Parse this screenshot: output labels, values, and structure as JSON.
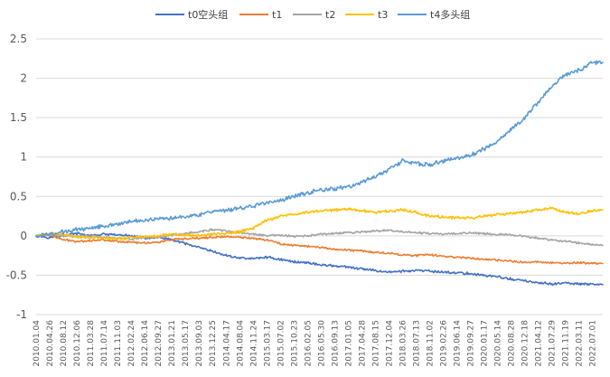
{
  "chart_data": {
    "type": "line",
    "title": "",
    "xlabel": "",
    "ylabel": "",
    "ylim": [
      -1,
      2.5
    ],
    "yticks": [
      -1,
      -0.5,
      0,
      0.5,
      1,
      1.5,
      2,
      2.5
    ],
    "ytick_labels": [
      "-1",
      "-0.5",
      "0",
      "0.5",
      "1",
      "1.5",
      "2",
      "2.5"
    ],
    "grid": true,
    "legend_position": "top",
    "x_tick_labels": [
      "2010.01.04",
      "2010.04.26",
      "2010.08.12",
      "2010.12.06",
      "2011.03.28",
      "2011.07.14",
      "2011.11.03",
      "2012.02.24",
      "2012.06.14",
      "2012.09.27",
      "2013.01.21",
      "2013.05.17",
      "2013.09.03",
      "2013.12.25",
      "2014.04.17",
      "2014.08.04",
      "2014.11.24",
      "2015.03.17",
      "2015.07.02",
      "2015.10.23",
      "2016.02.05",
      "2016.05.30",
      "2016.09.13",
      "2017.01.05",
      "2017.04.28",
      "2017.08.15",
      "2017.12.04",
      "2018.03.26",
      "2018.07.13",
      "2018.11.02",
      "2019.02.26",
      "2019.06.14",
      "2019.09.27",
      "2020.01.17",
      "2020.05.14",
      "2020.08.28",
      "2020.12.18",
      "2021.04.12",
      "2021.07.29",
      "2021.11.19",
      "2022.03.11",
      "2022.07.01"
    ],
    "x_index": [
      0,
      4,
      8,
      12,
      16,
      20,
      24,
      28,
      32,
      36,
      40,
      44,
      48,
      52,
      56,
      60,
      64,
      68,
      72,
      76,
      80,
      84,
      88,
      92,
      96,
      100,
      104,
      108,
      112,
      116,
      120,
      124,
      128,
      132,
      136,
      140,
      144,
      148,
      152,
      156,
      160,
      164,
      167
    ],
    "series": [
      {
        "name": "t0空头组",
        "color": "#4472C4",
        "values": [
          0,
          -0.02,
          0.01,
          0.03,
          0,
          0.02,
          0.01,
          0,
          -0.03,
          -0.02,
          -0.05,
          -0.1,
          -0.15,
          -0.2,
          -0.25,
          -0.28,
          -0.29,
          -0.27,
          -0.3,
          -0.33,
          -0.34,
          -0.37,
          -0.38,
          -0.4,
          -0.42,
          -0.44,
          -0.46,
          -0.45,
          -0.44,
          -0.45,
          -0.46,
          -0.47,
          -0.48,
          -0.5,
          -0.52,
          -0.55,
          -0.57,
          -0.6,
          -0.61,
          -0.6,
          -0.61,
          -0.62,
          -0.62
        ]
      },
      {
        "name": "t1",
        "color": "#ED7D31",
        "values": [
          0,
          0.01,
          -0.05,
          -0.07,
          -0.06,
          -0.05,
          -0.07,
          -0.08,
          -0.09,
          -0.08,
          -0.05,
          -0.04,
          -0.03,
          -0.02,
          -0.01,
          -0.02,
          -0.03,
          -0.05,
          -0.1,
          -0.12,
          -0.13,
          -0.15,
          -0.17,
          -0.18,
          -0.19,
          -0.21,
          -0.22,
          -0.24,
          -0.25,
          -0.24,
          -0.26,
          -0.27,
          -0.28,
          -0.3,
          -0.31,
          -0.32,
          -0.34,
          -0.33,
          -0.34,
          -0.35,
          -0.34,
          -0.35,
          -0.35
        ]
      },
      {
        "name": "t2",
        "color": "#A5A5A5",
        "values": [
          0,
          0.02,
          0,
          -0.01,
          0,
          -0.02,
          -0.03,
          -0.04,
          -0.03,
          -0.02,
          0.01,
          0.03,
          0.05,
          0.08,
          0.06,
          0.04,
          0.02,
          0,
          0.01,
          -0.01,
          0,
          0.02,
          0.03,
          0.04,
          0.05,
          0.06,
          0.07,
          0.05,
          0.04,
          0.03,
          0.02,
          0.03,
          0.04,
          0.03,
          0.02,
          0.01,
          -0.01,
          -0.03,
          -0.05,
          -0.07,
          -0.09,
          -0.11,
          -0.12
        ]
      },
      {
        "name": "t3",
        "color": "#FFC000",
        "values": [
          0,
          0.03,
          0.02,
          -0.01,
          -0.02,
          -0.03,
          -0.04,
          -0.02,
          -0.01,
          0,
          0.02,
          0.01,
          0,
          0.02,
          0.03,
          0.05,
          0.1,
          0.2,
          0.25,
          0.27,
          0.3,
          0.32,
          0.33,
          0.34,
          0.32,
          0.3,
          0.31,
          0.33,
          0.3,
          0.25,
          0.24,
          0.23,
          0.22,
          0.25,
          0.27,
          0.28,
          0.3,
          0.33,
          0.35,
          0.3,
          0.28,
          0.32,
          0.33
        ]
      },
      {
        "name": "t4多头组",
        "color": "#5B9BD5",
        "values": [
          0,
          0.02,
          0.05,
          0.08,
          0.1,
          0.13,
          0.15,
          0.18,
          0.2,
          0.22,
          0.23,
          0.25,
          0.27,
          0.3,
          0.32,
          0.35,
          0.38,
          0.42,
          0.45,
          0.5,
          0.55,
          0.58,
          0.6,
          0.62,
          0.68,
          0.75,
          0.85,
          0.95,
          0.92,
          0.9,
          0.95,
          0.98,
          1.02,
          1.1,
          1.2,
          1.35,
          1.5,
          1.7,
          1.9,
          2.05,
          2.1,
          2.2,
          2.2
        ]
      }
    ]
  }
}
